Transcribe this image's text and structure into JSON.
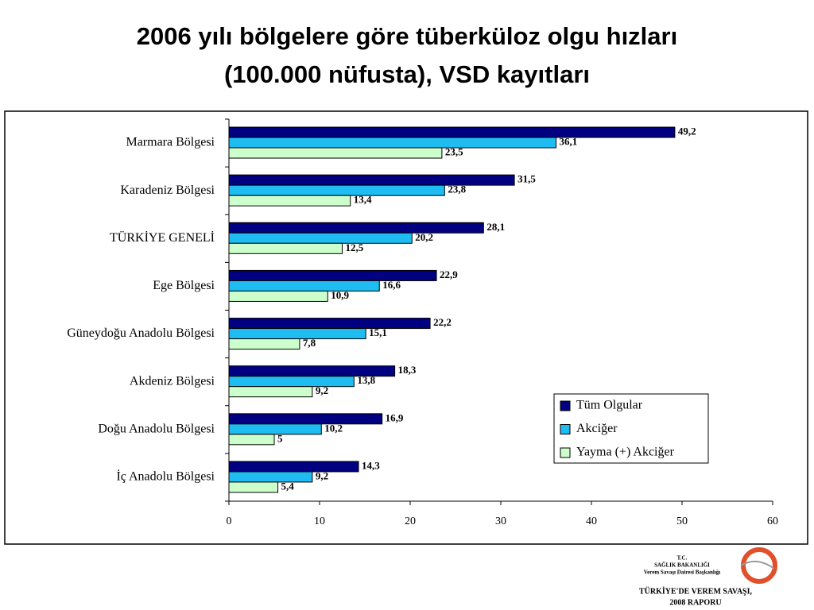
{
  "chart_data": {
    "type": "bar",
    "orientation": "horizontal",
    "title": [
      "2006 yılı bölgelere göre tüberküloz olgu hızları",
      "(100.000 nüfusta), VSD kayıtları"
    ],
    "categories": [
      "Marmara Bölgesi",
      "Karadeniz Bölgesi",
      "TÜRKİYE GENELİ",
      "Ege Bölgesi",
      "Güneydoğu Anadolu Bölgesi",
      "Akdeniz Bölgesi",
      "Doğu Anadolu Bölgesi",
      "İç Anadolu Bölgesi"
    ],
    "series": [
      {
        "name": "Tüm Olgular",
        "color": "#000080",
        "values": [
          49.2,
          31.5,
          28.1,
          22.9,
          22.2,
          18.3,
          16.9,
          14.3
        ],
        "value_labels": [
          "49,2",
          "31,5",
          "28,1",
          "22,9",
          "22,2",
          "18,3",
          "16,9",
          "14,3"
        ]
      },
      {
        "name": "Akciğer",
        "color": "#1ebcf0",
        "values": [
          36.1,
          23.8,
          20.2,
          16.6,
          15.1,
          13.8,
          10.2,
          9.2
        ],
        "value_labels": [
          "36,1",
          "23,8",
          "20,2",
          "16,6",
          "15,1",
          "13,8",
          "10,2",
          "9,2"
        ]
      },
      {
        "name": "Yayma (+) Akciğer",
        "color": "#ccffcc",
        "values": [
          23.5,
          13.4,
          12.5,
          10.9,
          7.8,
          9.2,
          5,
          5.4
        ],
        "value_labels": [
          "23,5",
          "13,4",
          "12,5",
          "10,9",
          "7,8",
          "9,2",
          "5",
          "5,4"
        ]
      }
    ],
    "xlim": [
      0,
      60
    ],
    "xticks": [
      0,
      10,
      20,
      30,
      40,
      50,
      60
    ],
    "legend": "lower right"
  },
  "footer": {
    "lines": [
      "T.C.",
      "SAĞLIK BAKANLIĞI",
      "Verem Savaşı Dairesi Başkanlığı"
    ],
    "report": [
      "TÜRKİYE'DE VEREM SAVAŞI,",
      "2008 RAPORU"
    ]
  }
}
